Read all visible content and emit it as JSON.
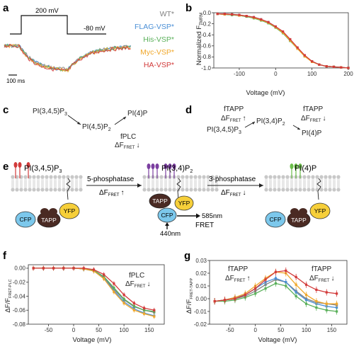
{
  "panels": {
    "a": {
      "label": "a",
      "protocol_high": "200 mV",
      "protocol_low": "-80 mV",
      "scale_bar": "100 ms",
      "legend": [
        {
          "name": "WT*",
          "color": "#7f7f7f"
        },
        {
          "name": "FLAG-VSP*",
          "color": "#4a8fd6"
        },
        {
          "name": "His-VSP*",
          "color": "#5ab05a"
        },
        {
          "name": "Myc-VSP*",
          "color": "#f0a72a"
        },
        {
          "name": "HA-VSP*",
          "color": "#d23a3a"
        }
      ]
    },
    "b": {
      "label": "b",
      "ylabel_main": "Normalized F",
      "ylabel_sub": "TMRM",
      "xlabel": "Voltage (mV)",
      "xticks": [
        "-100",
        "0",
        "100",
        "200"
      ],
      "yticks": [
        "0.0",
        "-0.2",
        "-0.4",
        "-0.6",
        "-0.8",
        "-1.0"
      ]
    },
    "c": {
      "label": "c",
      "pip3": "PI(3,4,5)P",
      "pip3_sub": "3",
      "pip2": "PI(4,5)P",
      "pip2_sub": "2",
      "pi4p": "PI(4)P",
      "enzyme": "fPLC",
      "delta_prefix": "ΔF",
      "delta_sub": "FRET",
      "arrow_down": "↓"
    },
    "d": {
      "label": "d",
      "tapp1": "fTAPP",
      "delta1": "ΔF",
      "delta1_sub": "FRET",
      "arrow_up": "↑",
      "pip3": "PI(3,4,5)P",
      "pip3_sub": "3",
      "pi34p2": "PI(3,4)P",
      "pi34p2_sub": "2",
      "tapp2": "fTAPP",
      "delta2": "ΔF",
      "delta2_sub": "FRET",
      "arrow_down": "↓",
      "pi4p": "PI(4)P"
    },
    "e": {
      "label": "e",
      "lipid1": "PI(3,4,5)P",
      "lipid1_sub": "3",
      "lipid2": "PI(3,4)P",
      "lipid2_sub": "2",
      "lipid3": "PI(4)P",
      "enzyme1": "5-phosphatase",
      "enzyme2": "3-phosphatase",
      "delta": "ΔF",
      "delta_sub": "FRET",
      "up": "↑",
      "down": "↓",
      "cfp": "CFP",
      "yfp": "YFP",
      "tapp": "TAPP",
      "nm585": "585nm",
      "nm440": "440nm",
      "fret": "FRET"
    },
    "f": {
      "label": "f",
      "ylabel_main": "ΔF/F",
      "ylabel_sub": "FRET-PLC",
      "xlabel": "Voltage (mV)",
      "xticks": [
        "-50",
        "0",
        "50",
        "100",
        "150"
      ],
      "yticks": [
        "0.00",
        "-0.02",
        "-0.04",
        "-0.06",
        "-0.08"
      ],
      "annot": "fPLC",
      "annot_delta": "ΔF",
      "annot_sub": "FRET",
      "annot_arrow": "↓"
    },
    "g": {
      "label": "g",
      "ylabel_main": "ΔF/F",
      "ylabel_sub": "FRET-TAPP",
      "xlabel": "Voltage (mV)",
      "xticks": [
        "-50",
        "0",
        "50",
        "100",
        "150"
      ],
      "yticks": [
        "0.03",
        "0.02",
        "0.01",
        "0.00",
        "-0.01",
        "-0.02"
      ],
      "annot1": "fTAPP",
      "annot1_delta": "ΔF",
      "annot1_sub": "FRET",
      "annot1_arrow": "↑",
      "annot2": "fTAPP",
      "annot2_delta": "ΔF",
      "annot2_sub": "FRET",
      "annot2_arrow": "↓"
    }
  },
  "chart_data": [
    {
      "type": "line",
      "panel": "b",
      "xlabel": "Voltage (mV)",
      "ylabel": "Normalized F TMRM",
      "xlim": [
        -170,
        200
      ],
      "ylim": [
        -1.0,
        0.0
      ],
      "x": [
        -160,
        -140,
        -120,
        -100,
        -80,
        -60,
        -40,
        -20,
        0,
        20,
        40,
        60,
        80,
        100,
        120,
        140,
        160,
        180,
        200
      ],
      "series": [
        {
          "name": "WT*",
          "color": "#7f7f7f",
          "values": [
            -0.02,
            -0.03,
            -0.04,
            -0.05,
            -0.07,
            -0.09,
            -0.13,
            -0.18,
            -0.26,
            -0.36,
            -0.5,
            -0.64,
            -0.78,
            -0.88,
            -0.94,
            -0.97,
            -0.98,
            -0.99,
            -1.0
          ]
        },
        {
          "name": "FLAG-VSP*",
          "color": "#4a8fd6",
          "values": [
            -0.02,
            -0.02,
            -0.03,
            -0.04,
            -0.06,
            -0.08,
            -0.12,
            -0.17,
            -0.25,
            -0.35,
            -0.49,
            -0.64,
            -0.78,
            -0.88,
            -0.94,
            -0.97,
            -0.98,
            -0.99,
            -1.0
          ]
        },
        {
          "name": "His-VSP*",
          "color": "#5ab05a",
          "values": [
            -0.02,
            -0.03,
            -0.04,
            -0.05,
            -0.07,
            -0.1,
            -0.14,
            -0.19,
            -0.27,
            -0.37,
            -0.51,
            -0.65,
            -0.79,
            -0.88,
            -0.94,
            -0.97,
            -0.98,
            -0.99,
            -1.0
          ]
        },
        {
          "name": "Myc-VSP*",
          "color": "#f0a72a",
          "values": [
            -0.02,
            -0.03,
            -0.03,
            -0.05,
            -0.06,
            -0.09,
            -0.13,
            -0.18,
            -0.26,
            -0.36,
            -0.5,
            -0.65,
            -0.79,
            -0.89,
            -0.94,
            -0.97,
            -0.98,
            -0.99,
            -1.0
          ]
        },
        {
          "name": "HA-VSP*",
          "color": "#d23a3a",
          "values": [
            -0.02,
            -0.02,
            -0.03,
            -0.04,
            -0.06,
            -0.08,
            -0.12,
            -0.17,
            -0.25,
            -0.34,
            -0.48,
            -0.63,
            -0.77,
            -0.88,
            -0.94,
            -0.97,
            -0.98,
            -0.99,
            -1.0
          ]
        }
      ]
    },
    {
      "type": "line",
      "panel": "f",
      "xlabel": "Voltage (mV)",
      "ylabel": "ΔF/F FRET-PLC",
      "xlim": [
        -90,
        180
      ],
      "ylim": [
        -0.08,
        0.005
      ],
      "x": [
        -80,
        -60,
        -40,
        -20,
        0,
        20,
        40,
        60,
        80,
        100,
        120,
        140,
        160
      ],
      "series": [
        {
          "name": "WT*",
          "color": "#7f7f7f",
          "values": [
            0.0,
            0.0,
            0.0,
            0.0,
            0.0,
            -0.001,
            -0.004,
            -0.013,
            -0.03,
            -0.045,
            -0.055,
            -0.06,
            -0.063
          ]
        },
        {
          "name": "FLAG-VSP*",
          "color": "#4a8fd6",
          "values": [
            0.0,
            0.0,
            0.0,
            0.0,
            0.0,
            -0.001,
            -0.004,
            -0.014,
            -0.032,
            -0.048,
            -0.058,
            -0.064,
            -0.068
          ]
        },
        {
          "name": "His-VSP*",
          "color": "#5ab05a",
          "values": [
            0.0,
            0.0,
            0.0,
            0.0,
            0.0,
            -0.001,
            -0.003,
            -0.012,
            -0.028,
            -0.044,
            -0.054,
            -0.06,
            -0.062
          ]
        },
        {
          "name": "Myc-VSP*",
          "color": "#f0a72a",
          "values": [
            0.0,
            0.0,
            0.0,
            0.0,
            0.0,
            -0.001,
            -0.004,
            -0.015,
            -0.034,
            -0.05,
            -0.06,
            -0.065,
            -0.069
          ]
        },
        {
          "name": "HA-VSP*",
          "color": "#d23a3a",
          "values": [
            0.0,
            0.0,
            0.0,
            0.0,
            0.0,
            0.0,
            -0.002,
            -0.009,
            -0.022,
            -0.038,
            -0.05,
            -0.057,
            -0.06
          ]
        }
      ]
    },
    {
      "type": "line",
      "panel": "g",
      "xlabel": "Voltage (mV)",
      "ylabel": "ΔF/F FRET-TAPP",
      "xlim": [
        -90,
        180
      ],
      "ylim": [
        -0.02,
        0.03
      ],
      "x": [
        -80,
        -60,
        -40,
        -20,
        0,
        20,
        40,
        60,
        80,
        100,
        120,
        140,
        160
      ],
      "series": [
        {
          "name": "WT*",
          "color": "#7f7f7f",
          "values": [
            -0.002,
            -0.001,
            0.0,
            0.002,
            0.006,
            0.011,
            0.015,
            0.013,
            0.006,
            0.0,
            -0.003,
            -0.004,
            -0.005
          ]
        },
        {
          "name": "FLAG-VSP*",
          "color": "#4a8fd6",
          "values": [
            -0.002,
            -0.001,
            0.001,
            0.003,
            0.008,
            0.013,
            0.016,
            0.013,
            0.005,
            -0.001,
            -0.004,
            -0.006,
            -0.007
          ]
        },
        {
          "name": "His-VSP*",
          "color": "#5ab05a",
          "values": [
            -0.002,
            -0.002,
            -0.001,
            0.001,
            0.004,
            0.008,
            0.012,
            0.01,
            0.002,
            -0.004,
            -0.007,
            -0.009,
            -0.01
          ]
        },
        {
          "name": "Myc-VSP*",
          "color": "#f0a72a",
          "values": [
            -0.002,
            -0.001,
            0.001,
            0.004,
            0.01,
            0.016,
            0.021,
            0.02,
            0.011,
            0.003,
            -0.002,
            -0.004,
            -0.004
          ]
        },
        {
          "name": "HA-VSP*",
          "color": "#d23a3a",
          "values": [
            -0.002,
            -0.001,
            0.0,
            0.003,
            0.008,
            0.015,
            0.021,
            0.022,
            0.017,
            0.011,
            0.007,
            0.005,
            0.004
          ]
        }
      ]
    }
  ]
}
